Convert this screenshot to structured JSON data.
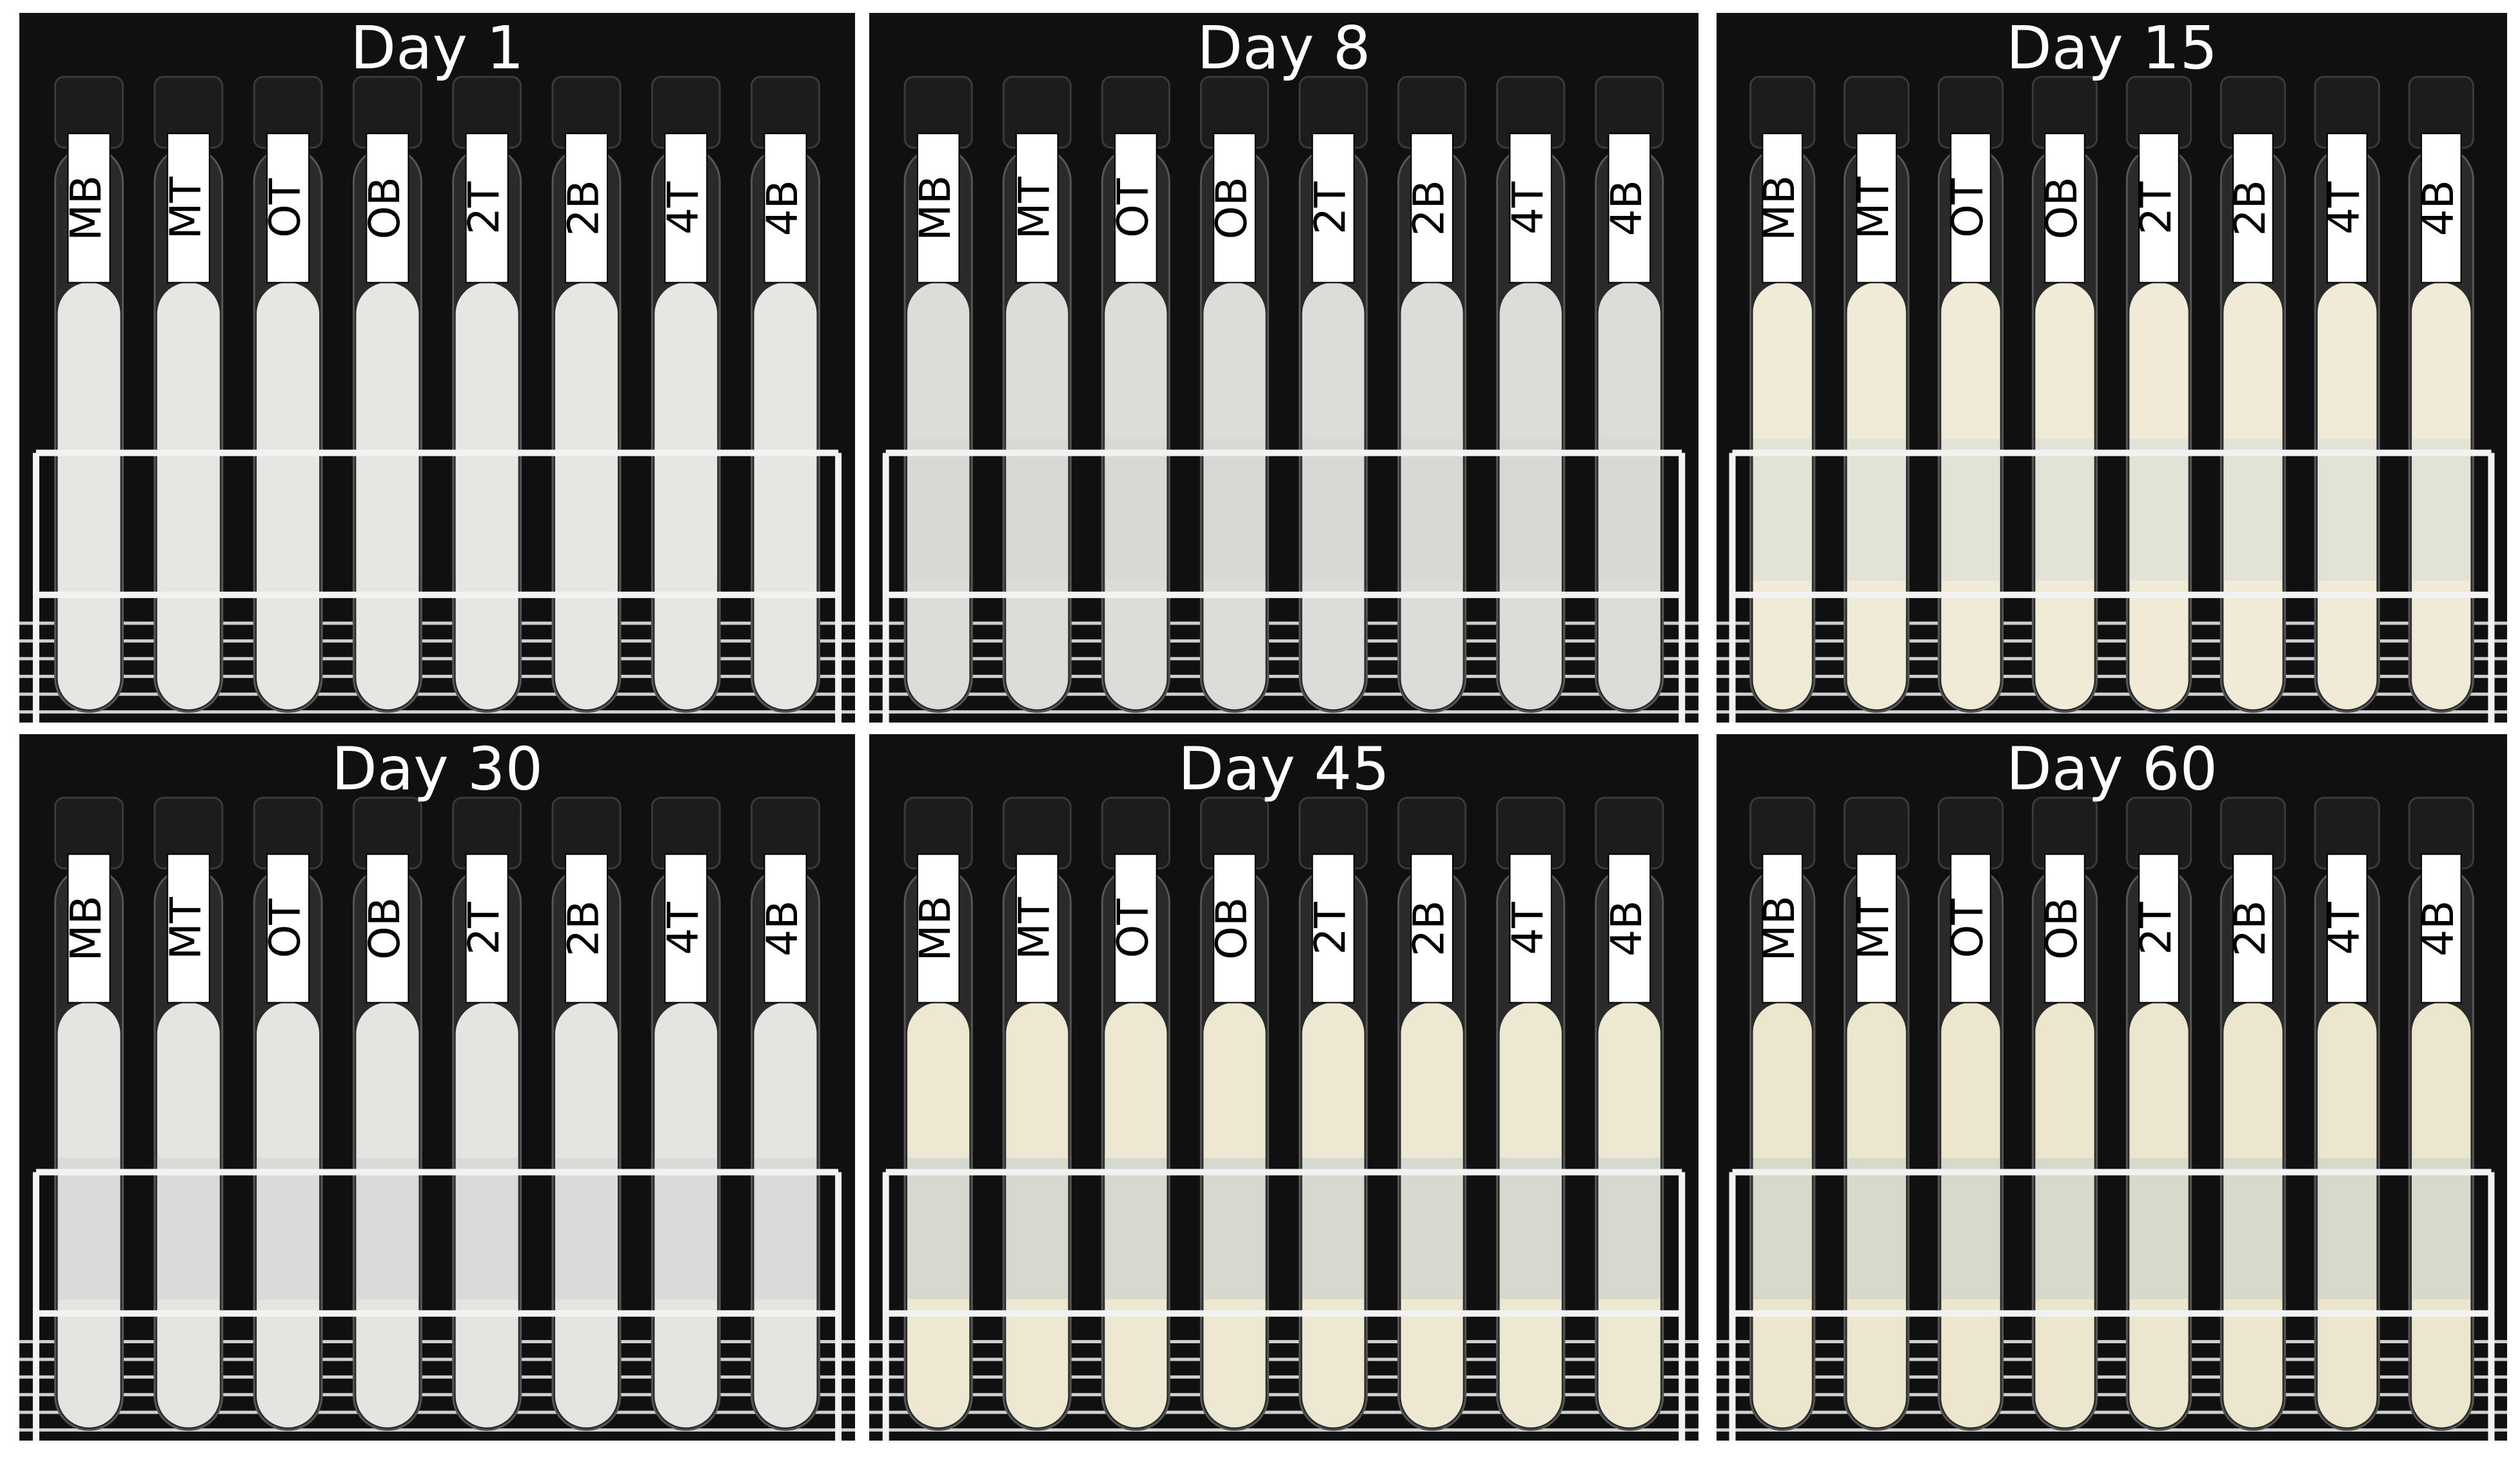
{
  "panels": [
    {
      "title": "Day 1",
      "tubes": [
        "MB",
        "MT",
        "OT",
        "OB",
        "2T",
        "2B",
        "4T",
        "4B"
      ]
    },
    {
      "title": "Day 8",
      "tubes": [
        "MB",
        "MT",
        "OT",
        "OB",
        "2T",
        "2B",
        "4T",
        "4B"
      ]
    },
    {
      "title": "Day 15",
      "tubes": [
        "MB",
        "MT",
        "OT",
        "OB",
        "2T",
        "2B",
        "4T",
        "4B"
      ]
    },
    {
      "title": "Day 30",
      "tubes": [
        "MB",
        "MT",
        "OT",
        "OB",
        "2T",
        "2B",
        "4T",
        "4B"
      ]
    },
    {
      "title": "Day 45",
      "tubes": [
        "MB",
        "MT",
        "OT",
        "OB",
        "2T",
        "2B",
        "4T",
        "4B"
      ]
    },
    {
      "title": "Day 60",
      "tubes": [
        "MB",
        "MT",
        "OT",
        "OB",
        "2T",
        "2B",
        "4T",
        "4B"
      ]
    }
  ]
}
